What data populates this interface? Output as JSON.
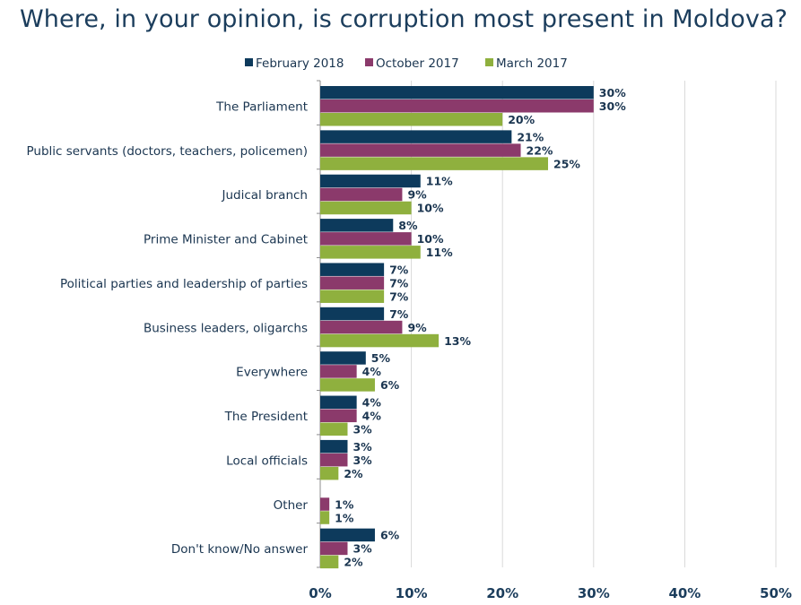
{
  "chart_data": {
    "type": "bar",
    "orientation": "horizontal",
    "title": "Where, in your opinion, is corruption most present in Moldova?",
    "xlabel": "",
    "ylabel": "",
    "xlim": [
      0,
      50
    ],
    "x_ticks": [
      "0%",
      "10%",
      "20%",
      "30%",
      "40%",
      "50%"
    ],
    "grid": true,
    "legend_position": "top-center",
    "categories": [
      "The Parliament",
      "Public servants (doctors, teachers, policemen)",
      "Judical branch",
      "Prime Minister and Cabinet",
      "Political parties and leadership of parties",
      "Business leaders, oligarchs",
      "Everywhere",
      "The President",
      "Local officials",
      "Other",
      "Don't know/No answer"
    ],
    "series": [
      {
        "name": "February 2018",
        "color": "#0d3a5c",
        "values": [
          30,
          21,
          11,
          8,
          7,
          7,
          5,
          4,
          3,
          null,
          6
        ],
        "labels": [
          "30%",
          "21%",
          "11%",
          "8%",
          "7%",
          "7%",
          "5%",
          "4%",
          "3%",
          "",
          "6%"
        ]
      },
      {
        "name": "October 2017",
        "color": "#8b3a6b",
        "values": [
          30,
          22,
          9,
          10,
          7,
          9,
          4,
          4,
          3,
          1,
          3
        ],
        "labels": [
          "30%",
          "22%",
          "9%",
          "10%",
          "7%",
          "9%",
          "4%",
          "4%",
          "3%",
          "1%",
          "3%"
        ]
      },
      {
        "name": "March 2017",
        "color": "#8fb03e",
        "values": [
          20,
          25,
          10,
          11,
          7,
          13,
          6,
          3,
          2,
          1,
          2
        ],
        "labels": [
          "20%",
          "25%",
          "10%",
          "11%",
          "7%",
          "13%",
          "6%",
          "3%",
          "2%",
          "1%",
          "2%"
        ]
      }
    ]
  }
}
